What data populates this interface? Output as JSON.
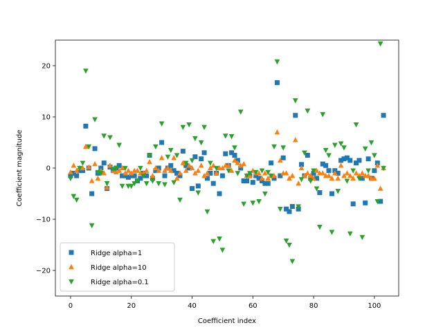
{
  "chart_data": {
    "type": "scatter",
    "title": "",
    "xlabel": "Coefficient index",
    "ylabel": "Coefficient magnitude",
    "xlim": [
      -5,
      108
    ],
    "ylim": [
      -25,
      25
    ],
    "xticks": [
      0,
      20,
      40,
      60,
      80,
      100
    ],
    "yticks": [
      -20,
      -10,
      0,
      10,
      20
    ],
    "grid": false,
    "legend": {
      "placement": "lower-left"
    },
    "series": [
      {
        "name": "Ridge alpha=1",
        "marker": "square",
        "color": "#1f77b4",
        "x": [
          0,
          1,
          2,
          3,
          4,
          5,
          6,
          7,
          8,
          9,
          10,
          11,
          12,
          13,
          14,
          15,
          16,
          17,
          18,
          19,
          20,
          21,
          22,
          23,
          24,
          25,
          26,
          27,
          28,
          29,
          30,
          31,
          32,
          33,
          34,
          35,
          36,
          37,
          38,
          39,
          40,
          41,
          42,
          43,
          44,
          45,
          46,
          47,
          48,
          49,
          50,
          51,
          52,
          53,
          54,
          55,
          56,
          57,
          58,
          59,
          60,
          61,
          62,
          63,
          64,
          65,
          66,
          67,
          68,
          69,
          70,
          71,
          72,
          73,
          74,
          75,
          76,
          77,
          78,
          79,
          80,
          81,
          82,
          83,
          84,
          85,
          86,
          87,
          88,
          89,
          90,
          91,
          92,
          93,
          94,
          95,
          96,
          97,
          98,
          99,
          100,
          101,
          102,
          103
        ],
        "y": [
          -1.5,
          -1.0,
          -1.5,
          -0.5,
          -0.5,
          8.2,
          0.0,
          -5.0,
          3.8,
          -1.0,
          0.0,
          1.0,
          -4.0,
          0.2,
          -0.5,
          0.0,
          0.5,
          -1.5,
          -1.5,
          -1.8,
          -1.5,
          -1.5,
          -2.5,
          -2.0,
          -1.0,
          -1.5,
          2.5,
          -2.0,
          -0.5,
          0.0,
          5.0,
          -1.5,
          0.0,
          0.5,
          -0.5,
          -1.0,
          -1.5,
          3.3,
          0.5,
          0.0,
          -4.0,
          2.2,
          -3.5,
          1.8,
          3.0,
          -2.0,
          -1.0,
          -3.0,
          -1.0,
          -5.0,
          -1.5,
          2.8,
          0.5,
          3.0,
          2.5,
          1.5,
          0.0,
          -2.5,
          -2.5,
          -1.5,
          -2.8,
          -1.5,
          -2.0,
          -2.5,
          -3.0,
          -3.0,
          1.0,
          -2.0,
          16.7,
          -1.5,
          2.0,
          -8.0,
          -8.5,
          -7.5,
          10.3,
          -8.0,
          0.7,
          -1.5,
          2.5,
          -2.0,
          -1.0,
          -2.0,
          -4.8,
          0.8,
          0.5,
          -0.5,
          -5.0,
          -0.5,
          -1.0,
          1.5,
          1.8,
          2.0,
          1.5,
          -7.0,
          1.0,
          1.5,
          -2.0,
          -6.8,
          1.8,
          -2.0,
          -0.5,
          1.0,
          -6.5,
          10.3
        ]
      },
      {
        "name": "Ridge alpha=10",
        "marker": "triangle-up",
        "color": "#ff7f0e",
        "x": [
          0,
          1,
          2,
          3,
          4,
          5,
          6,
          7,
          8,
          9,
          10,
          11,
          12,
          13,
          14,
          15,
          16,
          17,
          18,
          19,
          20,
          21,
          22,
          23,
          24,
          25,
          26,
          27,
          28,
          29,
          30,
          31,
          32,
          33,
          34,
          35,
          36,
          37,
          38,
          39,
          40,
          41,
          42,
          43,
          44,
          45,
          46,
          47,
          48,
          49,
          50,
          51,
          52,
          53,
          54,
          55,
          56,
          57,
          58,
          59,
          60,
          61,
          62,
          63,
          64,
          65,
          66,
          67,
          68,
          69,
          70,
          71,
          72,
          73,
          74,
          75,
          76,
          77,
          78,
          79,
          80,
          81,
          82,
          83,
          84,
          85,
          86,
          87,
          88,
          89,
          90,
          91,
          92,
          93,
          94,
          95,
          96,
          97,
          98,
          99,
          100,
          101,
          102,
          103
        ],
        "y": [
          -0.8,
          0.5,
          -0.5,
          0.0,
          0.0,
          4.2,
          0.2,
          -2.5,
          0.8,
          -2.0,
          -0.5,
          -1.0,
          -3.8,
          0.5,
          -0.5,
          -0.8,
          -0.5,
          0.0,
          -1.0,
          -0.5,
          -1.0,
          -0.5,
          -0.5,
          -1.0,
          -1.0,
          -0.5,
          1.2,
          -1.5,
          0.0,
          -0.5,
          2.0,
          -0.5,
          0.0,
          -0.5,
          2.0,
          -2.0,
          -1.0,
          1.0,
          -0.5,
          0.5,
          0.0,
          -1.0,
          -0.5,
          0.5,
          -1.5,
          -1.0,
          0.0,
          0.5,
          -1.0,
          0.0,
          0.0,
          0.5,
          0.5,
          -0.5,
          1.5,
          1.0,
          0.5,
          0.8,
          -1.5,
          -1.5,
          -0.5,
          -1.0,
          -1.0,
          -2.0,
          -1.0,
          -2.0,
          -1.5,
          -1.5,
          7.0,
          1.5,
          -1.0,
          -1.0,
          -2.0,
          -1.5,
          5.5,
          -3.0,
          0.0,
          -1.5,
          -1.0,
          -1.5,
          -2.0,
          -0.5,
          -1.0,
          -1.0,
          -1.5,
          -1.5,
          -2.0,
          -1.0,
          -2.0,
          0.5,
          -1.5,
          -1.0,
          -1.5,
          -2.0,
          -1.0,
          -1.5,
          -1.0,
          -1.5,
          -1.5,
          -2.0,
          -2.0,
          0.5,
          -4.0,
          0.0
        ]
      },
      {
        "name": "Ridge alpha=0.1",
        "marker": "triangle-down",
        "color": "#2ca02c",
        "x": [
          0,
          1,
          2,
          3,
          4,
          5,
          6,
          7,
          8,
          9,
          10,
          11,
          12,
          13,
          14,
          15,
          16,
          17,
          18,
          19,
          20,
          21,
          22,
          23,
          24,
          25,
          26,
          27,
          28,
          29,
          30,
          31,
          32,
          33,
          34,
          35,
          36,
          37,
          38,
          39,
          40,
          41,
          42,
          43,
          44,
          45,
          46,
          47,
          48,
          49,
          50,
          51,
          52,
          53,
          54,
          55,
          56,
          57,
          58,
          59,
          60,
          61,
          62,
          63,
          64,
          65,
          66,
          67,
          68,
          69,
          70,
          71,
          72,
          73,
          74,
          75,
          76,
          77,
          78,
          79,
          80,
          81,
          82,
          83,
          84,
          85,
          86,
          87,
          88,
          89,
          90,
          91,
          92,
          93,
          94,
          95,
          96,
          97,
          98,
          99,
          100,
          101,
          102,
          103
        ],
        "y": [
          -2.0,
          -5.5,
          -6.2,
          0.0,
          1.0,
          19.0,
          4.2,
          -11.2,
          9.5,
          -0.8,
          -1.0,
          6.3,
          -3.0,
          6.0,
          -0.2,
          0.0,
          4.5,
          -3.5,
          0.0,
          -3.5,
          -3.5,
          -3.0,
          -2.5,
          0.0,
          -1.5,
          -3.0,
          2.5,
          -2.5,
          4.2,
          -3.0,
          8.7,
          -3.2,
          2.2,
          3.5,
          -2.8,
          2.5,
          -6.2,
          8.0,
          1.0,
          8.5,
          1.5,
          5.8,
          -4.8,
          5.0,
          8.0,
          -8.5,
          1.0,
          -14.3,
          0.0,
          -13.8,
          -16.0,
          6.3,
          -0.5,
          6.2,
          4.0,
          -1.0,
          11.0,
          -7.0,
          -1.5,
          -1.0,
          -6.8,
          -0.8,
          -6.5,
          -0.5,
          -5.0,
          -0.8,
          -1.5,
          4.2,
          20.8,
          -8.0,
          4.0,
          -14.2,
          -15.0,
          -18.2,
          13.2,
          -7.5,
          -2.2,
          3.0,
          11.2,
          -2.5,
          -0.5,
          -4.0,
          -11.5,
          10.5,
          3.5,
          2.5,
          -12.5,
          4.5,
          -4.5,
          4.8,
          4.0,
          -2.5,
          -12.8,
          -0.5,
          8.5,
          -2.0,
          -13.5,
          3.8,
          -0.5,
          5.0,
          2.5,
          -6.5,
          24.3,
          0.0
        ]
      }
    ]
  }
}
